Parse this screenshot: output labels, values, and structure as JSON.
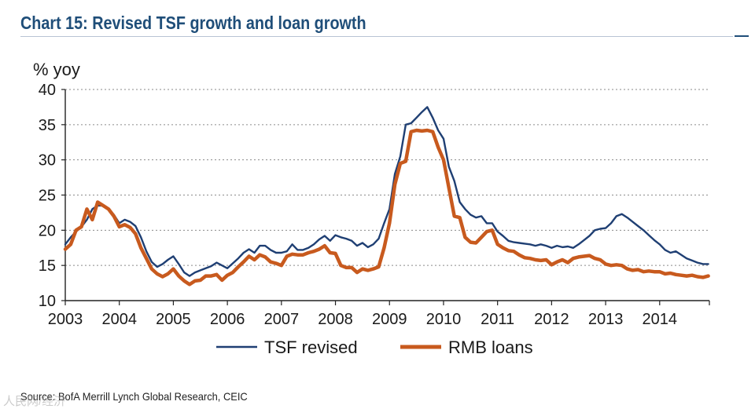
{
  "title": "Chart 15: Revised TSF growth and loan growth",
  "source": "Source: BofA Merrill Lynch Global Research, CEIC",
  "watermark": "人民网/经济",
  "chart_data": {
    "type": "line",
    "title": "Chart 15: Revised TSF growth and loan growth",
    "xlabel": "",
    "ylabel": "% yoy",
    "xlim": [
      2003.0,
      2014.92
    ],
    "ylim": [
      10,
      40
    ],
    "yticks": [
      10,
      15,
      20,
      25,
      30,
      35,
      40
    ],
    "xtick_labels": [
      "2003",
      "2004",
      "2005",
      "2006",
      "2007",
      "2008",
      "2009",
      "2010",
      "2011",
      "2012",
      "2013",
      "2014"
    ],
    "grid": "horizontal dotted",
    "legend_position": "bottom-center",
    "series": [
      {
        "name": "TSF revised",
        "color": "#1f3f73",
        "x": [
          2003.0,
          2003.1,
          2003.2,
          2003.3,
          2003.4,
          2003.5,
          2003.6,
          2003.7,
          2003.8,
          2003.9,
          2004.0,
          2004.1,
          2004.2,
          2004.3,
          2004.4,
          2004.5,
          2004.6,
          2004.7,
          2004.8,
          2004.9,
          2005.0,
          2005.1,
          2005.2,
          2005.3,
          2005.4,
          2005.5,
          2005.6,
          2005.7,
          2005.8,
          2005.9,
          2006.0,
          2006.1,
          2006.2,
          2006.3,
          2006.4,
          2006.5,
          2006.6,
          2006.7,
          2006.8,
          2006.9,
          2007.0,
          2007.1,
          2007.2,
          2007.3,
          2007.4,
          2007.5,
          2007.6,
          2007.7,
          2007.8,
          2007.9,
          2008.0,
          2008.1,
          2008.2,
          2008.3,
          2008.4,
          2008.5,
          2008.6,
          2008.7,
          2008.8,
          2008.9,
          2009.0,
          2009.1,
          2009.2,
          2009.3,
          2009.4,
          2009.5,
          2009.6,
          2009.7,
          2009.8,
          2009.9,
          2010.0,
          2010.1,
          2010.2,
          2010.3,
          2010.4,
          2010.5,
          2010.6,
          2010.7,
          2010.8,
          2010.9,
          2011.0,
          2011.1,
          2011.2,
          2011.3,
          2011.4,
          2011.5,
          2011.6,
          2011.7,
          2011.8,
          2011.9,
          2012.0,
          2012.1,
          2012.2,
          2012.3,
          2012.4,
          2012.5,
          2012.6,
          2012.7,
          2012.8,
          2012.9,
          2013.0,
          2013.1,
          2013.2,
          2013.3,
          2013.4,
          2013.5,
          2013.6,
          2013.7,
          2013.8,
          2013.9,
          2014.0,
          2014.1,
          2014.2,
          2014.3,
          2014.4,
          2014.5,
          2014.6,
          2014.7,
          2014.8,
          2014.9
        ],
        "values": [
          18.0,
          19.0,
          19.8,
          20.5,
          21.5,
          23.0,
          23.5,
          23.5,
          23.0,
          22.2,
          21.0,
          21.5,
          21.2,
          20.6,
          19.0,
          17.0,
          15.5,
          14.8,
          15.2,
          15.8,
          16.3,
          15.2,
          14.0,
          13.5,
          14.0,
          14.3,
          14.6,
          14.9,
          15.4,
          15.0,
          14.6,
          15.3,
          16.0,
          16.8,
          17.3,
          16.8,
          17.8,
          17.8,
          17.2,
          16.8,
          16.8,
          17.0,
          18.0,
          17.2,
          17.2,
          17.5,
          18.0,
          18.7,
          19.2,
          18.5,
          19.3,
          19.0,
          18.8,
          18.5,
          17.8,
          18.2,
          17.6,
          18.0,
          18.8,
          21.0,
          23.0,
          28.0,
          30.5,
          35.0,
          35.2,
          36.0,
          36.8,
          37.5,
          36.0,
          34.2,
          33.0,
          29.0,
          27.0,
          24.0,
          23.0,
          22.2,
          21.8,
          22.0,
          21.0,
          21.0,
          19.8,
          19.2,
          18.5,
          18.3,
          18.2,
          18.1,
          18.0,
          17.8,
          18.0,
          17.8,
          17.5,
          17.8,
          17.6,
          17.7,
          17.5,
          18.0,
          18.6,
          19.2,
          20.0,
          20.2,
          20.3,
          21.0,
          22.0,
          22.3,
          21.8,
          21.2,
          20.6,
          20.0,
          19.3,
          18.6,
          18.0,
          17.2,
          16.8,
          17.0,
          16.5,
          16.0,
          15.7,
          15.4,
          15.2,
          15.2
        ]
      },
      {
        "name": "RMB loans",
        "color": "#c85a1e",
        "x": [
          2003.0,
          2003.1,
          2003.2,
          2003.3,
          2003.4,
          2003.5,
          2003.6,
          2003.7,
          2003.8,
          2003.9,
          2004.0,
          2004.1,
          2004.2,
          2004.3,
          2004.4,
          2004.5,
          2004.6,
          2004.7,
          2004.8,
          2004.9,
          2005.0,
          2005.1,
          2005.2,
          2005.3,
          2005.4,
          2005.5,
          2005.6,
          2005.7,
          2005.8,
          2005.9,
          2006.0,
          2006.1,
          2006.2,
          2006.3,
          2006.4,
          2006.5,
          2006.6,
          2006.7,
          2006.8,
          2006.9,
          2007.0,
          2007.1,
          2007.2,
          2007.3,
          2007.4,
          2007.5,
          2007.6,
          2007.7,
          2007.8,
          2007.9,
          2008.0,
          2008.1,
          2008.2,
          2008.3,
          2008.4,
          2008.5,
          2008.6,
          2008.7,
          2008.8,
          2008.9,
          2009.0,
          2009.1,
          2009.2,
          2009.3,
          2009.4,
          2009.5,
          2009.6,
          2009.7,
          2009.8,
          2009.9,
          2010.0,
          2010.1,
          2010.2,
          2010.3,
          2010.4,
          2010.5,
          2010.6,
          2010.7,
          2010.8,
          2010.9,
          2011.0,
          2011.1,
          2011.2,
          2011.3,
          2011.4,
          2011.5,
          2011.6,
          2011.7,
          2011.8,
          2011.9,
          2012.0,
          2012.1,
          2012.2,
          2012.3,
          2012.4,
          2012.5,
          2012.6,
          2012.7,
          2012.8,
          2012.9,
          2013.0,
          2013.1,
          2013.2,
          2013.3,
          2013.4,
          2013.5,
          2013.6,
          2013.7,
          2013.8,
          2013.9,
          2014.0,
          2014.1,
          2014.2,
          2014.3,
          2014.4,
          2014.5,
          2014.6,
          2014.7,
          2014.8,
          2014.9
        ],
        "values": [
          17.3,
          18.0,
          20.0,
          20.5,
          23.0,
          21.5,
          24.0,
          23.5,
          23.0,
          22.0,
          20.5,
          20.8,
          20.4,
          19.5,
          17.5,
          16.0,
          14.5,
          13.8,
          13.4,
          13.8,
          14.5,
          13.5,
          12.8,
          12.3,
          12.8,
          12.9,
          13.5,
          13.5,
          13.7,
          12.9,
          13.6,
          14.0,
          14.8,
          15.5,
          16.3,
          15.8,
          16.5,
          16.2,
          15.5,
          15.3,
          15.0,
          16.3,
          16.6,
          16.5,
          16.5,
          16.8,
          17.0,
          17.3,
          17.8,
          16.8,
          16.7,
          15.0,
          14.7,
          14.7,
          14.0,
          14.5,
          14.3,
          14.5,
          14.8,
          17.5,
          21.0,
          26.5,
          29.5,
          29.8,
          34.0,
          34.2,
          34.1,
          34.2,
          34.0,
          31.8,
          30.0,
          26.0,
          22.0,
          21.8,
          19.0,
          18.3,
          18.2,
          19.0,
          19.8,
          20.0,
          18.0,
          17.5,
          17.1,
          17.0,
          16.5,
          16.1,
          16.0,
          15.8,
          15.7,
          15.8,
          15.1,
          15.5,
          15.8,
          15.4,
          16.0,
          16.2,
          16.3,
          16.4,
          16.0,
          15.8,
          15.2,
          15.0,
          15.1,
          15.0,
          14.5,
          14.3,
          14.4,
          14.1,
          14.2,
          14.1,
          14.1,
          13.8,
          13.9,
          13.7,
          13.6,
          13.5,
          13.6,
          13.4,
          13.3,
          13.5
        ]
      }
    ]
  }
}
